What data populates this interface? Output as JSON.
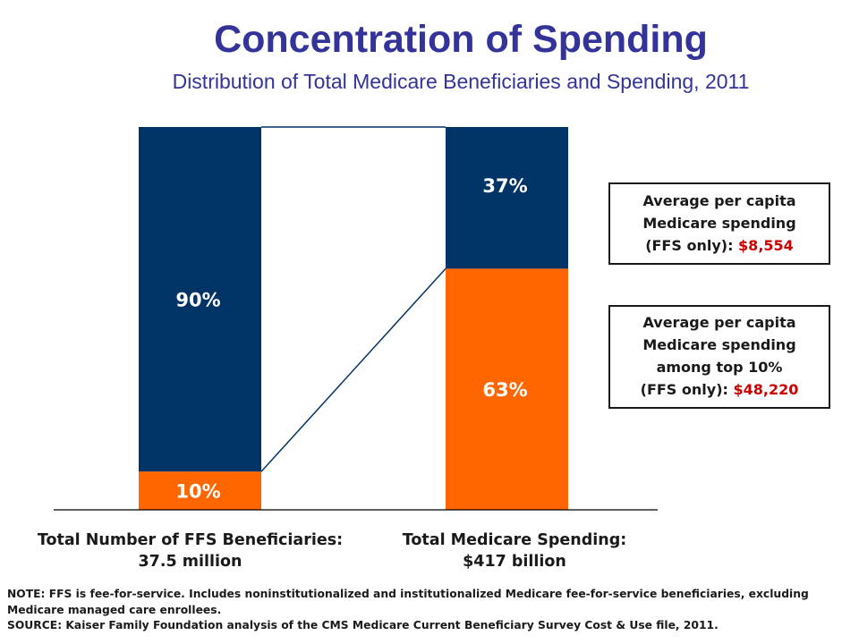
{
  "header": {
    "title": "Concentration of Spending",
    "subtitle": "Distribution of Total Medicare Beneficiaries and Spending, 2011"
  },
  "colors": {
    "navy": "#003366",
    "orange": "#ff6600",
    "title": "#333399",
    "highlight": "#cc0000"
  },
  "chart_data": {
    "type": "bar",
    "stacked": true,
    "percent": true,
    "categories": [
      "Total Number of FFS Beneficiaries: 37.5 million",
      "Total Medicare Spending: $417 billion"
    ],
    "series": [
      {
        "values": [
          10,
          63
        ],
        "labels": [
          "10%",
          "63%"
        ],
        "color": "#ff6600"
      },
      {
        "values": [
          90,
          37
        ],
        "labels": [
          "90%",
          "37%"
        ],
        "color": "#003366"
      }
    ],
    "ylim": [
      0,
      100
    ]
  },
  "categories_display": [
    {
      "line1": "Total Number of FFS Beneficiaries:",
      "line2": "37.5 million"
    },
    {
      "line1": "Total Medicare Spending:",
      "line2": "$417 billion"
    }
  ],
  "callouts": [
    {
      "line1": "Average per capita",
      "line2": "Medicare spending",
      "line3": "(FFS only):",
      "value": "$8,554"
    },
    {
      "line1": "Average per capita",
      "line2": "Medicare spending",
      "line3": "among top 10%",
      "line4": "(FFS only):",
      "value": "$48,220"
    }
  ],
  "note": {
    "note_text": "NOTE:  FFS is fee-for-service.  Includes noninstitutionalized and institutionalized Medicare fee-for-service beneficiaries, excluding Medicare managed care enrollees.",
    "source_text": "SOURCE: Kaiser Family Foundation analysis of the CMS Medicare Current Beneficiary Survey Cost & Use file, 2011."
  }
}
